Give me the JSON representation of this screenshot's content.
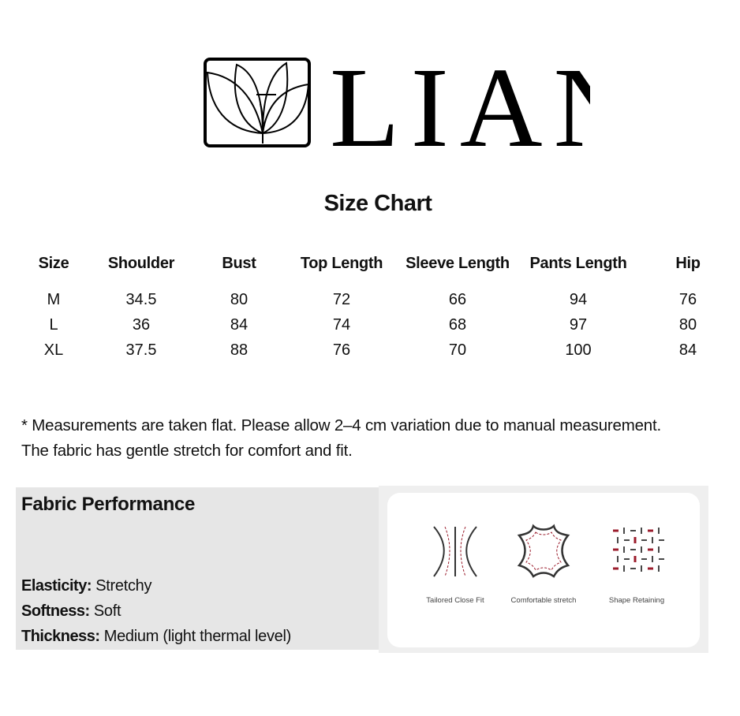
{
  "brand": {
    "name": "LIAN",
    "logo_icon": "lotus-icon"
  },
  "title": "Size Chart",
  "table": {
    "headers": [
      "Size",
      "Shoulder",
      "Bust",
      "Top Length",
      "Sleeve Length",
      "Pants Length",
      "Hip"
    ],
    "rows": [
      [
        "M",
        "34.5",
        "80",
        "72",
        "66",
        "94",
        "76"
      ],
      [
        "L",
        "36",
        "84",
        "74",
        "68",
        "97",
        "80"
      ],
      [
        "XL",
        "37.5",
        "88",
        "76",
        "70",
        "100",
        "84"
      ]
    ]
  },
  "notes": [
    "* Measurements are taken flat. Please allow 2–4 cm variation due to manual measurement.",
    "The fabric has gentle stretch for comfort and fit."
  ],
  "fabric": {
    "title": "Fabric Performance",
    "items": [
      {
        "label": "Elasticity:",
        "value": "Stretchy"
      },
      {
        "label": "Softness:",
        "value": "Soft"
      },
      {
        "label": "Thickness:",
        "value": "Medium (light thermal level)"
      }
    ]
  },
  "features": [
    {
      "label": "Tailored Close Fit",
      "icon": "tailored-fit-icon"
    },
    {
      "label": "Comfortable stretch",
      "icon": "leather-stretch-icon"
    },
    {
      "label": "Shape Retaining",
      "icon": "weave-grid-icon"
    }
  ],
  "colors": {
    "accent": "#9b1c2c",
    "panel": "#e6e6e6"
  }
}
